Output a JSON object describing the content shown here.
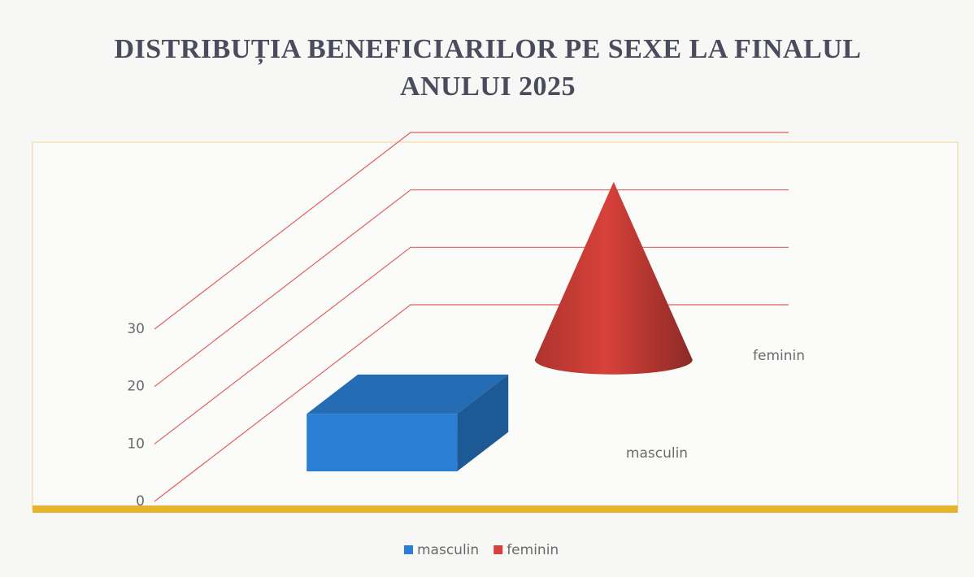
{
  "chart_data": {
    "type": "bar3d",
    "title": "DISTRIBUȚIA BENEFICIARILOR PE SEXE LA FINALUL ANULUI 2025",
    "categories": [
      "masculin",
      "feminin"
    ],
    "values": [
      10,
      31
    ],
    "colors": [
      "#2a7fd4",
      "#d8413a"
    ],
    "shapes": [
      "box",
      "cone"
    ],
    "ylim": [
      0,
      30
    ],
    "yticks": [
      0,
      10,
      20,
      30
    ],
    "grid": true,
    "legend": "bottom"
  }
}
